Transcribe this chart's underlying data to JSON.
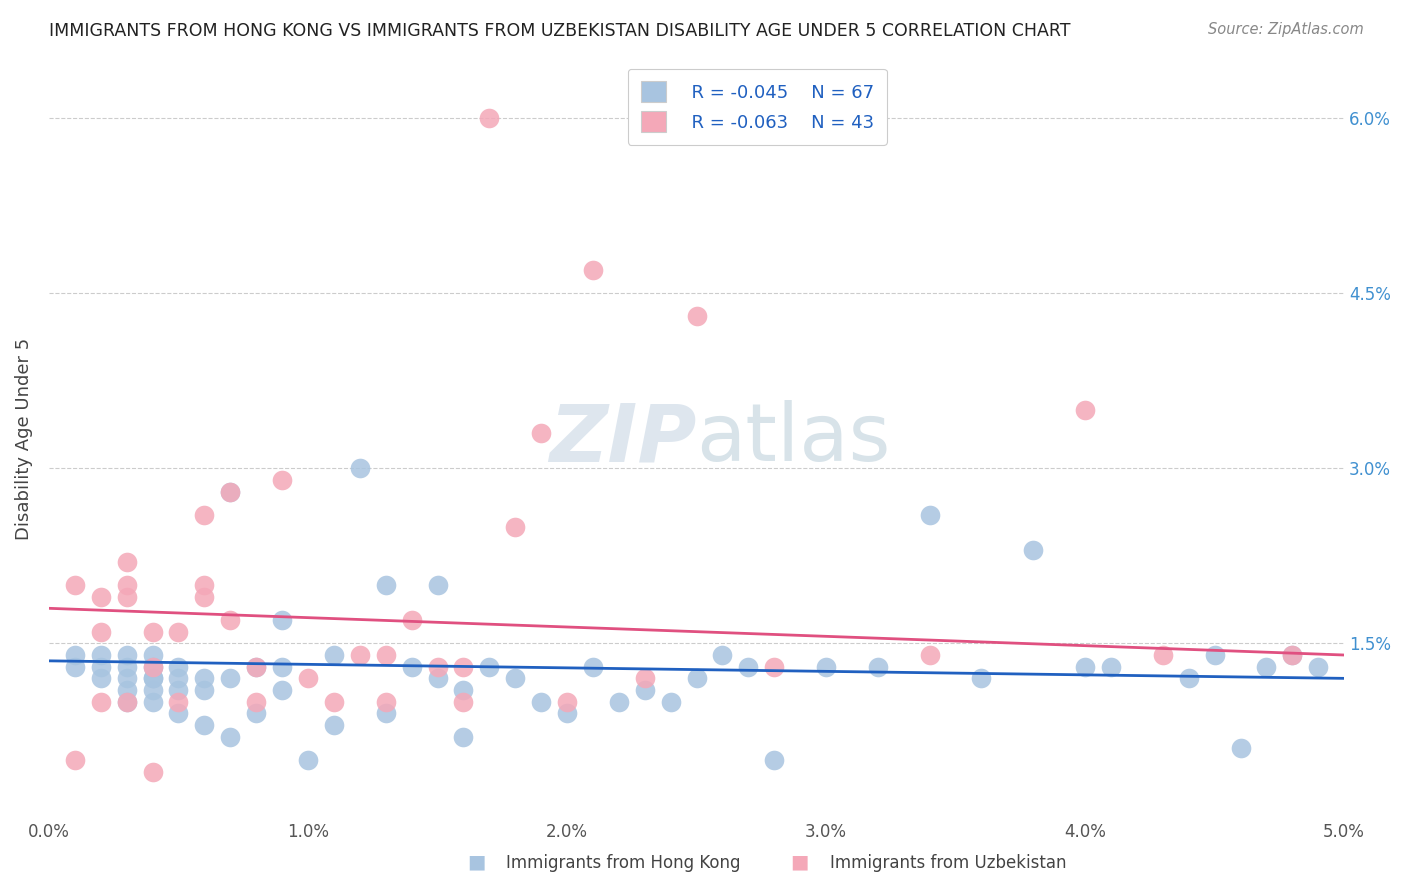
{
  "title": "IMMIGRANTS FROM HONG KONG VS IMMIGRANTS FROM UZBEKISTAN DISABILITY AGE UNDER 5 CORRELATION CHART",
  "source": "Source: ZipAtlas.com",
  "ylabel": "Disability Age Under 5",
  "x_min": 0.0,
  "x_max": 0.05,
  "y_min": 0.0,
  "y_max": 0.065,
  "yticks": [
    0.0,
    0.015,
    0.03,
    0.045,
    0.06
  ],
  "ytick_labels": [
    "",
    "1.5%",
    "3.0%",
    "4.5%",
    "6.0%"
  ],
  "legend_hk_r": "R = -0.045",
  "legend_hk_n": "N = 67",
  "legend_uz_r": "R = -0.063",
  "legend_uz_n": "N = 43",
  "color_hk": "#a8c4e0",
  "color_uz": "#f4a8b8",
  "line_color_hk": "#2060c0",
  "line_color_uz": "#e05080",
  "legend_text_color": "#2060c0",
  "watermark_color": "#c8d8e8",
  "background_color": "#ffffff",
  "hk_x": [
    0.001,
    0.001,
    0.002,
    0.002,
    0.002,
    0.003,
    0.003,
    0.003,
    0.003,
    0.003,
    0.004,
    0.004,
    0.004,
    0.004,
    0.004,
    0.004,
    0.005,
    0.005,
    0.005,
    0.005,
    0.006,
    0.006,
    0.006,
    0.007,
    0.007,
    0.007,
    0.008,
    0.008,
    0.009,
    0.009,
    0.009,
    0.01,
    0.011,
    0.011,
    0.012,
    0.013,
    0.013,
    0.014,
    0.015,
    0.015,
    0.016,
    0.016,
    0.017,
    0.018,
    0.019,
    0.02,
    0.021,
    0.022,
    0.023,
    0.024,
    0.025,
    0.026,
    0.027,
    0.028,
    0.03,
    0.032,
    0.034,
    0.036,
    0.038,
    0.04,
    0.041,
    0.044,
    0.045,
    0.046,
    0.047,
    0.048,
    0.049
  ],
  "hk_y": [
    0.013,
    0.014,
    0.012,
    0.013,
    0.014,
    0.01,
    0.011,
    0.012,
    0.013,
    0.014,
    0.01,
    0.011,
    0.012,
    0.012,
    0.013,
    0.014,
    0.009,
    0.011,
    0.012,
    0.013,
    0.008,
    0.011,
    0.012,
    0.007,
    0.012,
    0.028,
    0.009,
    0.013,
    0.011,
    0.013,
    0.017,
    0.005,
    0.008,
    0.014,
    0.03,
    0.009,
    0.02,
    0.013,
    0.012,
    0.02,
    0.007,
    0.011,
    0.013,
    0.012,
    0.01,
    0.009,
    0.013,
    0.01,
    0.011,
    0.01,
    0.012,
    0.014,
    0.013,
    0.005,
    0.013,
    0.013,
    0.026,
    0.012,
    0.023,
    0.013,
    0.013,
    0.012,
    0.014,
    0.006,
    0.013,
    0.014,
    0.013
  ],
  "uz_x": [
    0.001,
    0.001,
    0.002,
    0.002,
    0.002,
    0.003,
    0.003,
    0.003,
    0.003,
    0.004,
    0.004,
    0.004,
    0.005,
    0.005,
    0.006,
    0.006,
    0.006,
    0.007,
    0.007,
    0.008,
    0.008,
    0.009,
    0.01,
    0.011,
    0.012,
    0.013,
    0.013,
    0.014,
    0.015,
    0.016,
    0.016,
    0.017,
    0.018,
    0.019,
    0.02,
    0.021,
    0.023,
    0.025,
    0.028,
    0.034,
    0.04,
    0.043,
    0.048
  ],
  "uz_y": [
    0.005,
    0.02,
    0.01,
    0.016,
    0.019,
    0.01,
    0.019,
    0.02,
    0.022,
    0.004,
    0.013,
    0.016,
    0.01,
    0.016,
    0.019,
    0.02,
    0.026,
    0.017,
    0.028,
    0.01,
    0.013,
    0.029,
    0.012,
    0.01,
    0.014,
    0.01,
    0.014,
    0.017,
    0.013,
    0.01,
    0.013,
    0.06,
    0.025,
    0.033,
    0.01,
    0.047,
    0.012,
    0.043,
    0.013,
    0.014,
    0.035,
    0.014,
    0.014
  ],
  "line_hk_x0": 0.0,
  "line_hk_y0": 0.0135,
  "line_hk_x1": 0.05,
  "line_hk_y1": 0.012,
  "line_uz_x0": 0.0,
  "line_uz_y0": 0.018,
  "line_uz_x1": 0.05,
  "line_uz_y1": 0.014
}
